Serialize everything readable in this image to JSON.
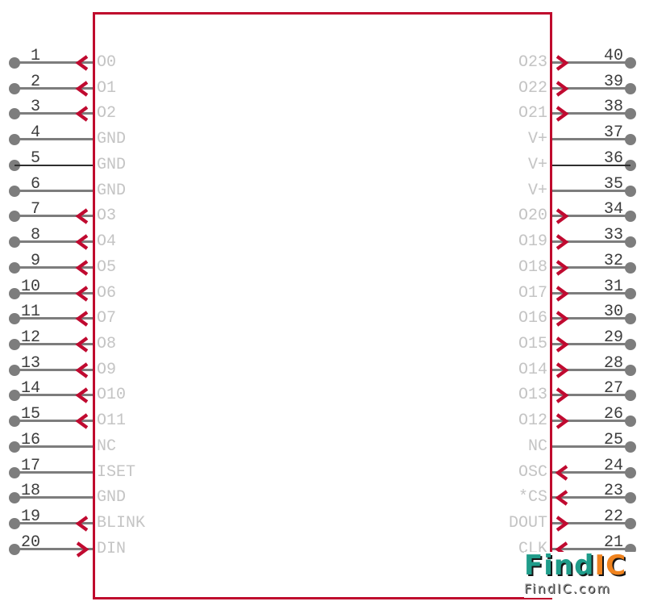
{
  "component": {
    "pin_count": 40,
    "outline_shape": "rectangle"
  },
  "pins": {
    "left": [
      {
        "number": "1",
        "label": "O0",
        "dir": "out"
      },
      {
        "number": "2",
        "label": "O1",
        "dir": "out"
      },
      {
        "number": "3",
        "label": "O2",
        "dir": "out"
      },
      {
        "number": "4",
        "label": "GND",
        "dir": "none"
      },
      {
        "number": "5",
        "label": "GND",
        "dir": "none",
        "thin": true
      },
      {
        "number": "6",
        "label": "GND",
        "dir": "none"
      },
      {
        "number": "7",
        "label": "O3",
        "dir": "out"
      },
      {
        "number": "8",
        "label": "O4",
        "dir": "out"
      },
      {
        "number": "9",
        "label": "O5",
        "dir": "out"
      },
      {
        "number": "10",
        "label": "O6",
        "dir": "out"
      },
      {
        "number": "11",
        "label": "O7",
        "dir": "out"
      },
      {
        "number": "12",
        "label": "O8",
        "dir": "out"
      },
      {
        "number": "13",
        "label": "O9",
        "dir": "out"
      },
      {
        "number": "14",
        "label": "O10",
        "dir": "out"
      },
      {
        "number": "15",
        "label": "O11",
        "dir": "out"
      },
      {
        "number": "16",
        "label": "NC",
        "dir": "none"
      },
      {
        "number": "17",
        "label": "ISET",
        "dir": "none"
      },
      {
        "number": "18",
        "label": "GND",
        "dir": "none"
      },
      {
        "number": "19",
        "label": "BLINK",
        "dir": "out"
      },
      {
        "number": "20",
        "label": "DIN",
        "dir": "in"
      }
    ],
    "right": [
      {
        "number": "40",
        "label": "O23",
        "dir": "out"
      },
      {
        "number": "39",
        "label": "O22",
        "dir": "out"
      },
      {
        "number": "38",
        "label": "O21",
        "dir": "out"
      },
      {
        "number": "37",
        "label": "V+",
        "dir": "none"
      },
      {
        "number": "36",
        "label": "V+",
        "dir": "none",
        "thin": true
      },
      {
        "number": "35",
        "label": "V+",
        "dir": "none"
      },
      {
        "number": "34",
        "label": "O20",
        "dir": "out"
      },
      {
        "number": "33",
        "label": "O19",
        "dir": "out"
      },
      {
        "number": "32",
        "label": "O18",
        "dir": "out"
      },
      {
        "number": "31",
        "label": "O17",
        "dir": "out"
      },
      {
        "number": "30",
        "label": "O16",
        "dir": "out"
      },
      {
        "number": "29",
        "label": "O15",
        "dir": "out"
      },
      {
        "number": "28",
        "label": "O14",
        "dir": "out"
      },
      {
        "number": "27",
        "label": "O13",
        "dir": "out"
      },
      {
        "number": "26",
        "label": "O12",
        "dir": "out"
      },
      {
        "number": "25",
        "label": "NC",
        "dir": "none"
      },
      {
        "number": "24",
        "label": "OSC",
        "dir": "in"
      },
      {
        "number": "23",
        "label": "*CS",
        "dir": "in"
      },
      {
        "number": "22",
        "label": "DOUT",
        "dir": "out"
      },
      {
        "number": "21",
        "label": "CLK",
        "dir": "in"
      }
    ]
  },
  "colors": {
    "body_outline": "#bf0a2d",
    "arrow": "#c00a30",
    "pin_line": "#7d7d7d",
    "pin_number": "#3d3d3d",
    "pin_label": "#c4c4c4",
    "logo_teal": "#1f9c8a",
    "logo_orange": "#f0831e",
    "logo_sub": "#8f8f8f"
  },
  "logo": {
    "brand_find": "Find",
    "brand_ic": "IC",
    "domain": "FindIC.com"
  }
}
